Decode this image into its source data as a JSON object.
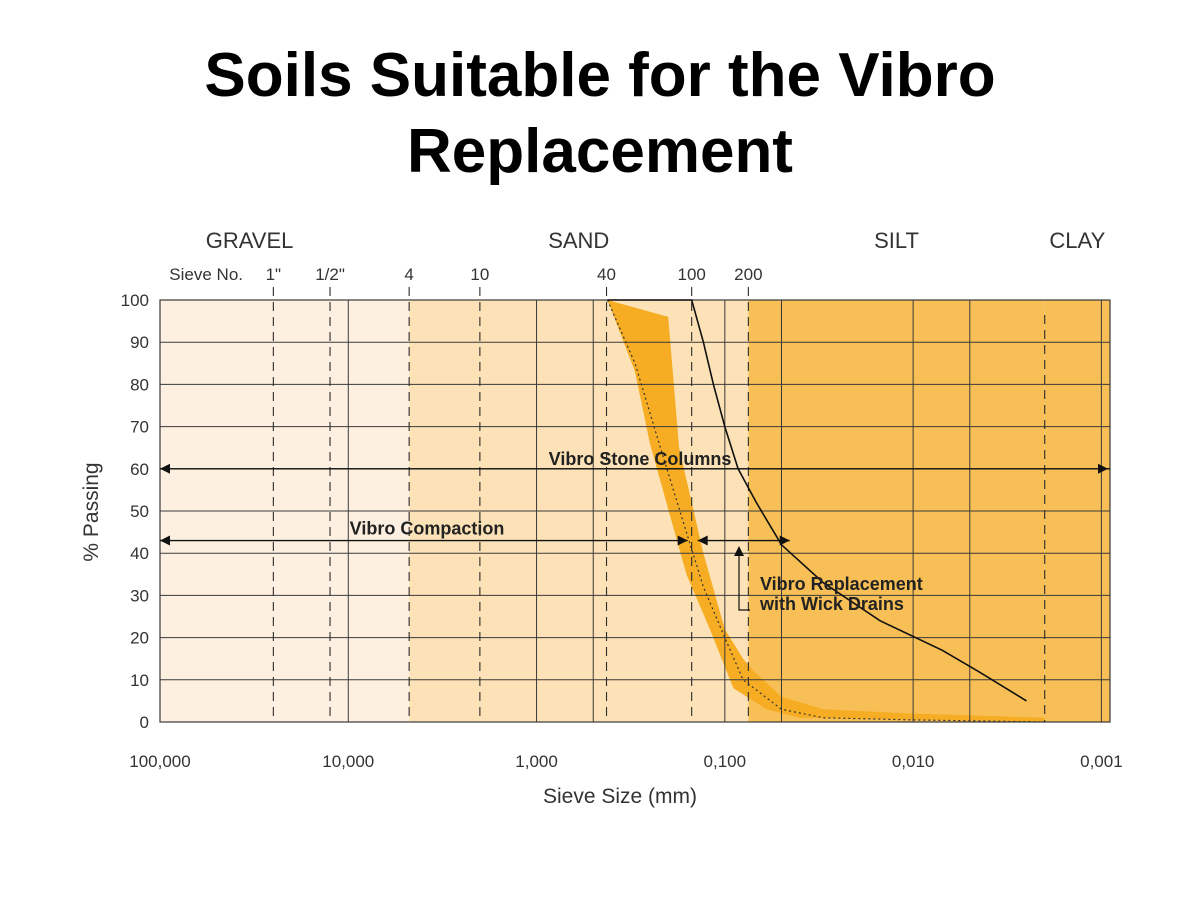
{
  "title_line1": "Soils Suitable for the Vibro",
  "title_line2": "Replacement",
  "colors": {
    "gravel_zone": "#fdf0e0",
    "sand_zone": "#fce2b6",
    "silt_clay_zone": "#f7bf55",
    "band": "#f6ad24",
    "grid": "#3a3a3a",
    "text": "#333333"
  },
  "chart_data": {
    "type": "area",
    "x_scale": "log",
    "x_reversed": true,
    "xlim": [
      100,
      0.0009
    ],
    "ylim": [
      0,
      100
    ],
    "ylabel": "% Passing",
    "xlabel": "Sieve Size (mm)",
    "x_ticks": [
      {
        "value": 100,
        "label": "100,000"
      },
      {
        "value": 10,
        "label": "10,000"
      },
      {
        "value": 1,
        "label": "1,000"
      },
      {
        "value": 0.1,
        "label": "0,100"
      },
      {
        "value": 0.01,
        "label": "0,010"
      },
      {
        "value": 0.001,
        "label": "0,001"
      }
    ],
    "y_ticks": [
      0,
      10,
      20,
      30,
      40,
      50,
      60,
      70,
      80,
      90,
      100
    ],
    "soil_zones": [
      {
        "label": "GRAVEL",
        "from": 100,
        "to": 4.75
      },
      {
        "label": "SAND",
        "from": 4.75,
        "to": 0.075
      },
      {
        "label": "SILT",
        "from": 0.075,
        "to": 0.002
      },
      {
        "label": "CLAY",
        "from": 0.002,
        "to": 0.0009
      }
    ],
    "sieve_prefix": "Sieve No.",
    "sieves": [
      {
        "label": "1\"",
        "value": 25
      },
      {
        "label": "1/2\"",
        "value": 12.5
      },
      {
        "label": "4",
        "value": 4.75
      },
      {
        "label": "10",
        "value": 2.0
      },
      {
        "label": "40",
        "value": 0.425
      },
      {
        "label": "100",
        "value": 0.15
      },
      {
        "label": "200",
        "value": 0.075
      }
    ],
    "series": [
      {
        "role": "band_upper",
        "points": [
          [
            0.42,
            100
          ],
          [
            0.2,
            96
          ],
          [
            0.175,
            65
          ],
          [
            0.13,
            40
          ],
          [
            0.1,
            22
          ],
          [
            0.08,
            15
          ],
          [
            0.07,
            12
          ],
          [
            0.05,
            6
          ],
          [
            0.03,
            3
          ],
          [
            0.01,
            2
          ],
          [
            0.002,
            1
          ]
        ]
      },
      {
        "role": "band_lower",
        "points": [
          [
            0.42,
            100
          ],
          [
            0.3,
            83
          ],
          [
            0.25,
            66
          ],
          [
            0.16,
            35
          ],
          [
            0.12,
            22
          ],
          [
            0.09,
            8
          ],
          [
            0.06,
            3
          ],
          [
            0.04,
            1
          ],
          [
            0.002,
            0
          ]
        ]
      },
      {
        "role": "median",
        "points": [
          [
            0.42,
            100
          ],
          [
            0.3,
            85
          ],
          [
            0.22,
            65
          ],
          [
            0.16,
            45
          ],
          [
            0.13,
            32
          ],
          [
            0.1,
            20
          ],
          [
            0.08,
            10
          ],
          [
            0.05,
            3
          ],
          [
            0.03,
            1
          ],
          [
            0.01,
            0.5
          ],
          [
            0.002,
            0
          ]
        ]
      },
      {
        "role": "upper_curve",
        "points": [
          [
            0.42,
            100
          ],
          [
            0.15,
            100
          ],
          [
            0.13,
            90
          ],
          [
            0.115,
            80
          ],
          [
            0.1,
            70
          ],
          [
            0.085,
            60
          ],
          [
            0.068,
            52
          ],
          [
            0.05,
            42
          ],
          [
            0.03,
            33
          ],
          [
            0.015,
            24
          ],
          [
            0.007,
            17
          ],
          [
            0.0045,
            12
          ],
          [
            0.0025,
            5
          ]
        ]
      }
    ],
    "annotations": [
      {
        "label": "Vibro Stone Columns",
        "from": 100,
        "to": 0.0009,
        "y": 60
      },
      {
        "label": "Vibro Compaction",
        "from": 100,
        "to": 0.15,
        "y": 43
      },
      {
        "label": "Vibro Replacement with Wick Drains",
        "from": 0.15,
        "to": 0.04,
        "y": 43
      }
    ]
  }
}
